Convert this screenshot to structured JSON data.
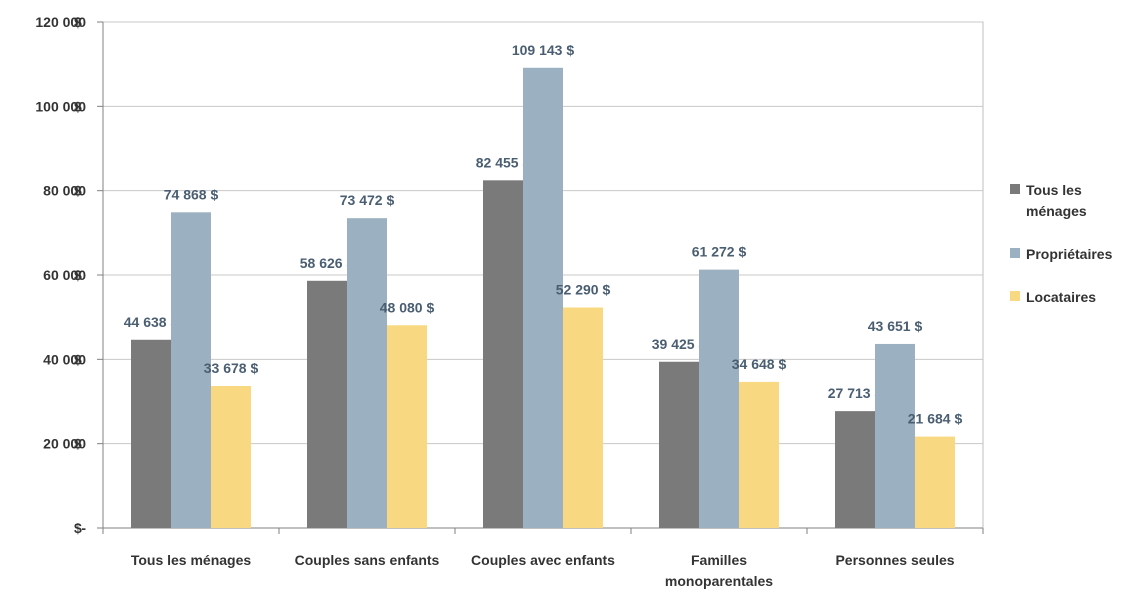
{
  "chart_data": {
    "type": "bar",
    "title": "",
    "xlabel": "",
    "ylabel": "",
    "ylim": [
      0,
      120000
    ],
    "yticks": [
      {
        "value": 0,
        "label": "-",
        "unit": "$"
      },
      {
        "value": 20000,
        "label": "20 000",
        "unit": "$"
      },
      {
        "value": 40000,
        "label": "40 000",
        "unit": "$"
      },
      {
        "value": 60000,
        "label": "60 000",
        "unit": "$"
      },
      {
        "value": 80000,
        "label": "80 000",
        "unit": "$"
      },
      {
        "value": 100000,
        "label": "100 000",
        "unit": "$"
      },
      {
        "value": 120000,
        "label": "120 000",
        "unit": "$"
      }
    ],
    "grid": true,
    "legend_position": "right",
    "categories": [
      [
        "Tous les ménages"
      ],
      [
        "Couples sans enfants"
      ],
      [
        "Couples avec enfants"
      ],
      [
        "Familles",
        "monoparentales"
      ],
      [
        "Personnes seules"
      ]
    ],
    "series": [
      {
        "name": "Tous les ménages",
        "legend_lines": [
          "Tous les",
          "ménages"
        ],
        "color": "#7a7a7a",
        "values": [
          44638,
          58626,
          82455,
          39425,
          27713
        ],
        "labels": [
          "44 638 $",
          "58 626 $",
          "82 455 $",
          "39 425 $",
          "27 713 $"
        ]
      },
      {
        "name": "Propriétaires",
        "legend_lines": [
          "Propriétaires"
        ],
        "color": "#9bb0c0",
        "values": [
          74868,
          73472,
          109143,
          61272,
          43651
        ],
        "labels": [
          "74 868 $",
          "73 472 $",
          "109 143 $",
          "61 272 $",
          "43 651 $"
        ]
      },
      {
        "name": "Locataires",
        "legend_lines": [
          "Locataires"
        ],
        "color": "#f8d880",
        "values": [
          33678,
          48080,
          52290,
          34648,
          21684
        ],
        "labels": [
          "33 678 $",
          "48 080 $",
          "52 290 $",
          "34 648 $",
          "21 684 $"
        ]
      }
    ]
  }
}
